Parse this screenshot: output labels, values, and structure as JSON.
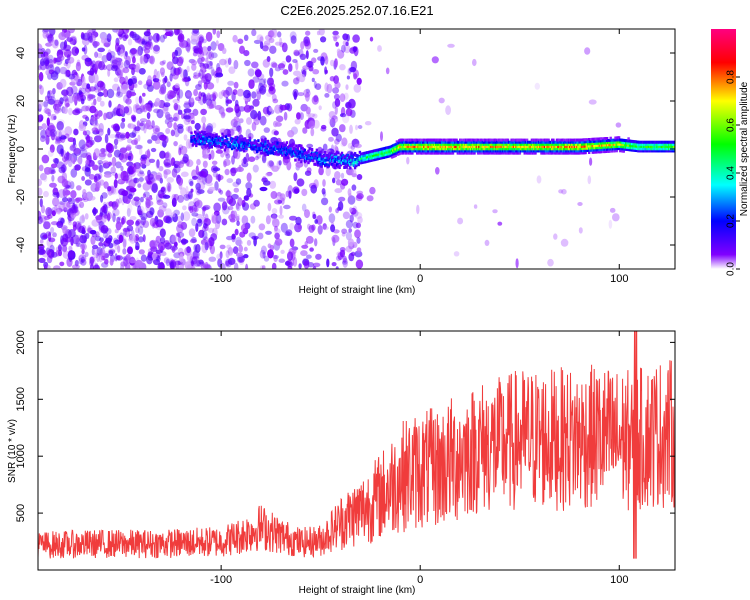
{
  "title": "C2E6.2025.252.07.16.E21",
  "chart_data": [
    {
      "type": "heatmap",
      "title": "C2E6.2025.252.07.16.E21",
      "xlabel": "Height of straight line (km)",
      "ylabel": "Frequency (Hz)",
      "xlim": [
        -192,
        128
      ],
      "ylim": [
        -50,
        50
      ],
      "xticks": [
        "-100",
        "0",
        "100"
      ],
      "yticks": [
        "-40",
        "-20",
        "0",
        "20",
        "40"
      ],
      "xtick_values": [
        -100,
        0,
        100
      ],
      "ytick_values": [
        -40,
        -20,
        0,
        20,
        40
      ],
      "colorbar": {
        "label": "Normalized spectral amplitude",
        "range": [
          0,
          1
        ],
        "ticks": [
          "0.0",
          "0.2",
          "0.4",
          "0.6",
          "0.8"
        ],
        "tick_values": [
          0,
          0.2,
          0.4,
          0.6,
          0.8
        ],
        "colors": [
          "#ffffff",
          "#7f00ff",
          "#0000ff",
          "#00ffff",
          "#00ff00",
          "#ffff00",
          "#ff0000",
          "#ff0080"
        ]
      },
      "ridge": {
        "description_points_km": [
          -110,
          -90,
          -70,
          -50,
          -35,
          -25,
          -15,
          -10,
          0,
          20,
          50,
          80,
          100,
          110,
          128
        ],
        "frequency_hz": [
          4,
          2,
          0,
          -4,
          -5,
          -3,
          -1,
          1,
          1,
          1,
          1,
          1,
          2,
          1,
          1
        ],
        "amplitude": [
          0.3,
          0.3,
          0.28,
          0.3,
          0.35,
          0.5,
          0.6,
          0.75,
          0.8,
          0.8,
          0.75,
          0.85,
          0.7,
          0.5,
          0.6
        ]
      },
      "noise_region_km": [
        -192,
        -30
      ]
    },
    {
      "type": "line",
      "xlabel": "Height of straight line (km)",
      "ylabel": "SNR (10 * v/v)",
      "xlim": [
        -192,
        128
      ],
      "ylim": [
        0,
        2100
      ],
      "xticks": [
        "-100",
        "0",
        "100"
      ],
      "yticks": [
        "500",
        "1000",
        "1500",
        "2000"
      ],
      "xtick_values": [
        -100,
        0,
        100
      ],
      "ytick_values": [
        500,
        1000,
        1500,
        2000
      ],
      "series": [
        {
          "name": "SNR",
          "color": "#f03c3c",
          "x": [
            -192,
            -160,
            -130,
            -100,
            -90,
            -80,
            -70,
            -60,
            -50,
            -40,
            -30,
            -25,
            -20,
            -10,
            0,
            10,
            20,
            30,
            40,
            50,
            60,
            70,
            80,
            90,
            100,
            105,
            108,
            110,
            115,
            120,
            128
          ],
          "y": [
            220,
            230,
            230,
            250,
            300,
            380,
            300,
            240,
            260,
            420,
            520,
            580,
            650,
            820,
            880,
            900,
            1000,
            1080,
            1100,
            1150,
            1150,
            1150,
            1160,
            1170,
            1150,
            1140,
            1100,
            1150,
            1180,
            1200,
            1200
          ]
        }
      ],
      "notes": [
        "spike to 2100 near x=108",
        "dip to 100 near x=108"
      ]
    }
  ]
}
